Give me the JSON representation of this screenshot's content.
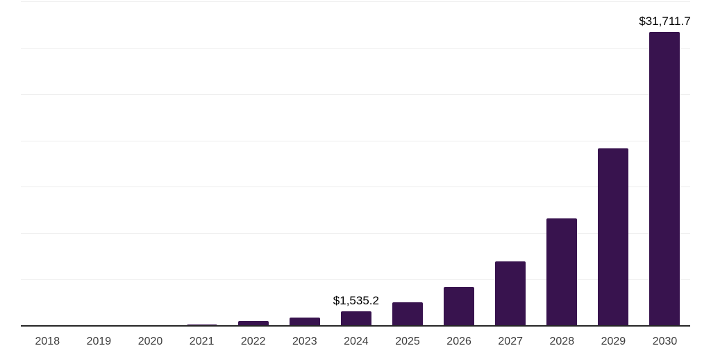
{
  "colors": {
    "background": "#ffffff",
    "bar": "#38134E",
    "axis_line": "#262626",
    "gridline": "#ededed",
    "x_label": "#3d3d3d",
    "data_label": "#000000"
  },
  "chart_data": {
    "type": "bar",
    "title": "",
    "xlabel": "",
    "ylabel": "",
    "categories": [
      "2018",
      "2019",
      "2020",
      "2021",
      "2022",
      "2023",
      "2024",
      "2025",
      "2026",
      "2027",
      "2028",
      "2029",
      "2030"
    ],
    "values": [
      30,
      55,
      95,
      170,
      500,
      930,
      1535.2,
      2540,
      4210,
      6980,
      11560,
      19140,
      31711.7
    ],
    "annotations": [
      {
        "category": "2024",
        "text": "$1,535.2"
      },
      {
        "category": "2030",
        "text": "$31,711.7"
      }
    ],
    "ylim": [
      0,
      35000
    ],
    "grid_interval": 5000,
    "grid": "horizontal-only",
    "y_axis_tick_labels": "none",
    "legend": "none"
  }
}
